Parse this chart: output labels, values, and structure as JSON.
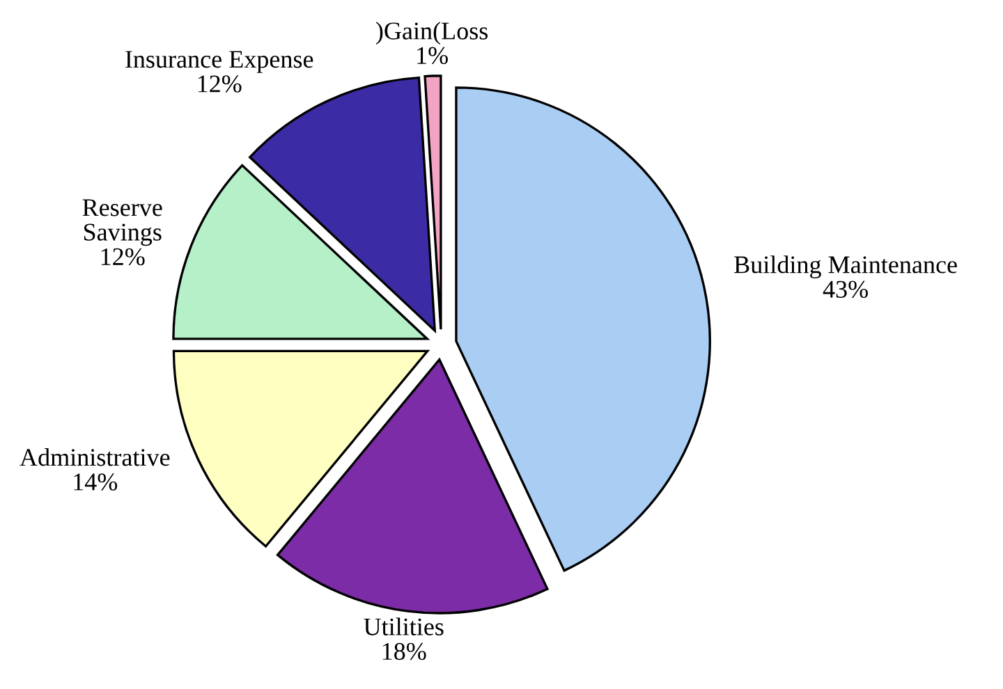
{
  "chart_data": {
    "type": "pie",
    "categories": [
      "Building Maintenance",
      "Utilities",
      "Administrative",
      "Reserve Savings",
      "Insurance Expense",
      ")Gain(Loss"
    ],
    "values": [
      43,
      18,
      14,
      12,
      12,
      1
    ],
    "value_labels": [
      "43%",
      "18%",
      "14%",
      "12%",
      "12%",
      "1%"
    ],
    "colors": [
      "#a9cdf3",
      "#7b2ca6",
      "#ffffc2",
      "#b5f0c9",
      "#3b2ca6",
      "#f3a3c3"
    ],
    "legend": false
  }
}
